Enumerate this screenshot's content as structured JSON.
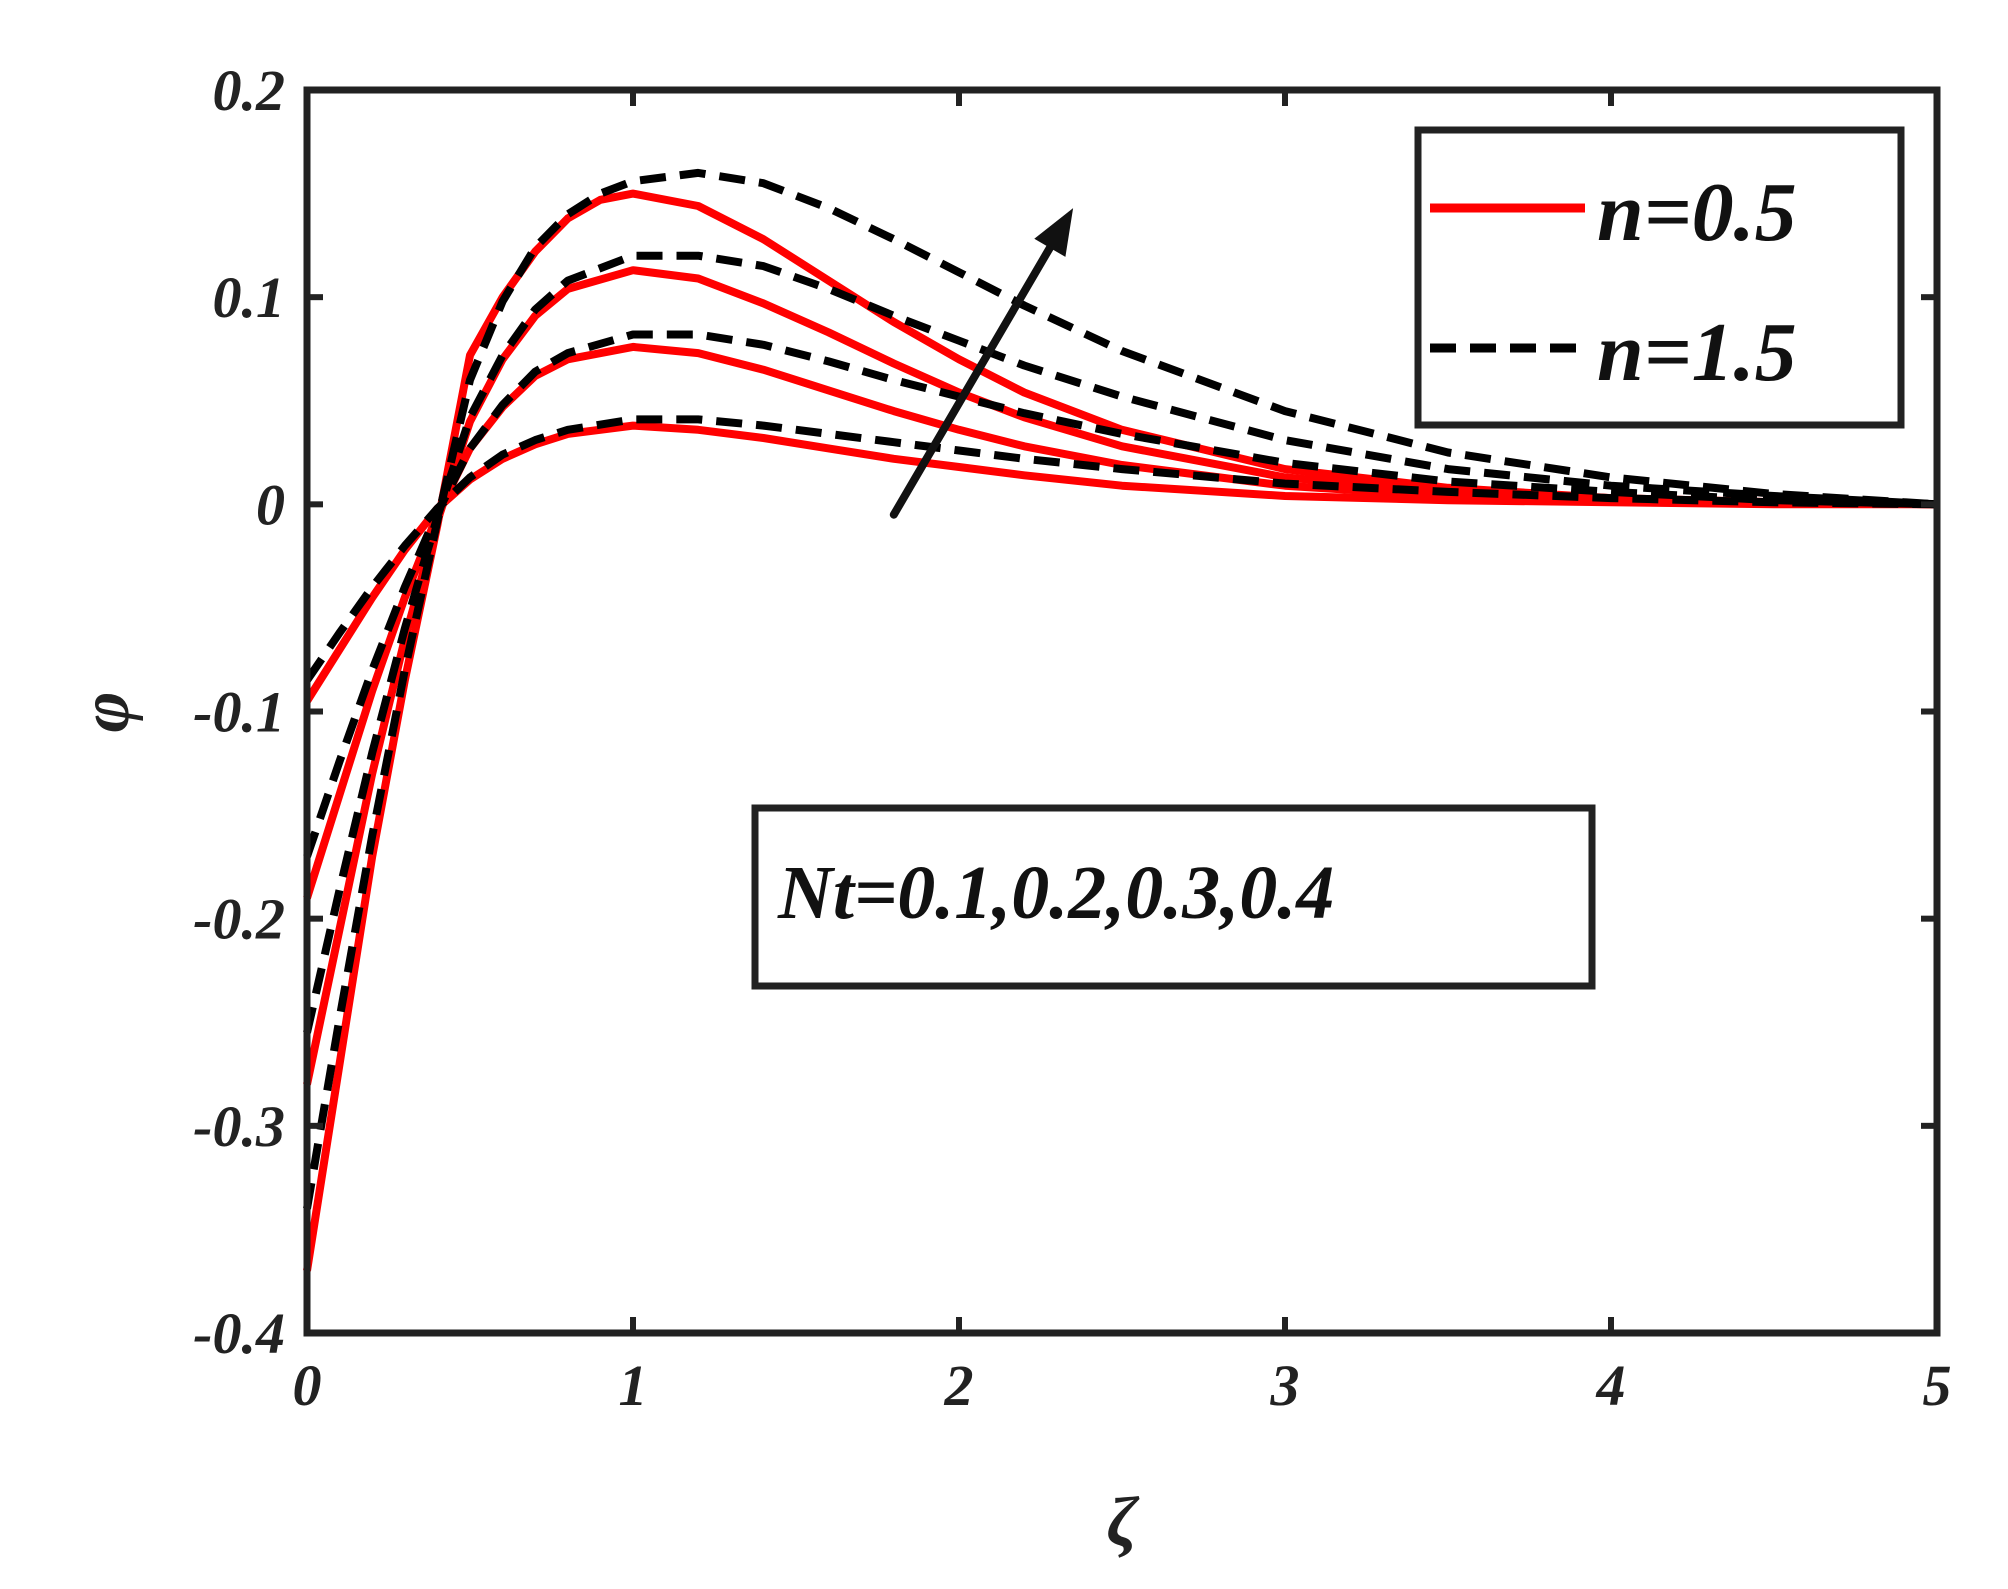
{
  "chart_data": {
    "type": "line",
    "xlabel": "ζ",
    "ylabel": "φ",
    "xlim": [
      0,
      5
    ],
    "ylim": [
      -0.4,
      0.2
    ],
    "xticks": [
      "0",
      "1",
      "2",
      "3",
      "4",
      "5"
    ],
    "yticks": [
      "0.2",
      "0.1",
      "0",
      "-0.1",
      "-0.2",
      "-0.3",
      "-0.4"
    ],
    "grid": false,
    "legend_position": "top-right",
    "legend": [
      {
        "label": "n=0.5",
        "color": "#ff0000",
        "style": "solid"
      },
      {
        "label": "n=1.5",
        "color": "#000000",
        "style": "dashed"
      }
    ],
    "annotation": "Nt=0.1,0.2,0.3,0.4",
    "arrow": {
      "direction": "increasing Nt",
      "from": [
        1.8,
        -0.005
      ],
      "to": [
        2.35,
        0.143
      ]
    },
    "series": [
      {
        "group": "n=0.5",
        "x": [
          0,
          0.1,
          0.2,
          0.3,
          0.4,
          0.5,
          0.6,
          0.7,
          0.8,
          1.0,
          1.2,
          1.4,
          1.6,
          1.8,
          2.0,
          2.2,
          2.5,
          3.0,
          3.5,
          4.0,
          4.5,
          5.0
        ],
        "y": [
          -0.095,
          -0.07,
          -0.045,
          -0.022,
          -0.002,
          0.012,
          0.022,
          0.029,
          0.034,
          0.038,
          0.036,
          0.032,
          0.027,
          0.022,
          0.018,
          0.014,
          0.009,
          0.004,
          0.002,
          0.001,
          0.0,
          0.0
        ]
      },
      {
        "group": "n=0.5",
        "x": [
          0,
          0.1,
          0.2,
          0.3,
          0.4,
          0.5,
          0.6,
          0.7,
          0.8,
          1.0,
          1.2,
          1.4,
          1.6,
          1.8,
          2.0,
          2.2,
          2.5,
          3.0,
          3.5,
          4.0,
          4.5,
          5.0
        ],
        "y": [
          -0.19,
          -0.14,
          -0.09,
          -0.045,
          -0.005,
          0.027,
          0.047,
          0.062,
          0.07,
          0.076,
          0.073,
          0.065,
          0.055,
          0.045,
          0.036,
          0.028,
          0.019,
          0.009,
          0.004,
          0.002,
          0.001,
          0.0
        ]
      },
      {
        "group": "n=0.5",
        "x": [
          0,
          0.1,
          0.2,
          0.3,
          0.4,
          0.5,
          0.6,
          0.7,
          0.8,
          1.0,
          1.2,
          1.4,
          1.6,
          1.8,
          2.0,
          2.2,
          2.5,
          3.0,
          3.5,
          4.0,
          4.5,
          5.0
        ],
        "y": [
          -0.28,
          -0.205,
          -0.13,
          -0.065,
          -0.008,
          0.04,
          0.07,
          0.091,
          0.104,
          0.113,
          0.109,
          0.097,
          0.083,
          0.068,
          0.054,
          0.042,
          0.028,
          0.013,
          0.006,
          0.003,
          0.001,
          0.0
        ]
      },
      {
        "group": "n=0.5",
        "x": [
          0,
          0.1,
          0.2,
          0.3,
          0.4,
          0.5,
          0.6,
          0.7,
          0.8,
          0.9,
          1.0,
          1.2,
          1.4,
          1.6,
          1.8,
          2.0,
          2.2,
          2.5,
          3.0,
          3.5,
          4.0,
          4.5,
          5.0
        ],
        "y": [
          -0.37,
          -0.27,
          -0.17,
          -0.085,
          -0.01,
          0.072,
          0.1,
          0.122,
          0.138,
          0.147,
          0.15,
          0.144,
          0.128,
          0.108,
          0.088,
          0.07,
          0.054,
          0.036,
          0.017,
          0.008,
          0.003,
          0.001,
          0.0
        ]
      },
      {
        "group": "n=1.5",
        "x": [
          0,
          0.1,
          0.2,
          0.3,
          0.4,
          0.5,
          0.6,
          0.7,
          0.8,
          1.0,
          1.2,
          1.4,
          1.6,
          1.8,
          2.0,
          2.2,
          2.5,
          3.0,
          3.5,
          4.0,
          4.5,
          5.0
        ],
        "y": [
          -0.085,
          -0.062,
          -0.04,
          -0.02,
          -0.002,
          0.013,
          0.024,
          0.031,
          0.036,
          0.041,
          0.041,
          0.038,
          0.034,
          0.03,
          0.026,
          0.022,
          0.017,
          0.01,
          0.006,
          0.003,
          0.001,
          0.0
        ]
      },
      {
        "group": "n=1.5",
        "x": [
          0,
          0.1,
          0.2,
          0.3,
          0.4,
          0.5,
          0.6,
          0.7,
          0.8,
          1.0,
          1.2,
          1.4,
          1.6,
          1.8,
          2.0,
          2.2,
          2.5,
          3.0,
          3.5,
          4.0,
          4.5,
          5.0
        ],
        "y": [
          -0.17,
          -0.124,
          -0.08,
          -0.04,
          -0.004,
          0.027,
          0.048,
          0.064,
          0.073,
          0.082,
          0.082,
          0.077,
          0.069,
          0.06,
          0.052,
          0.044,
          0.034,
          0.02,
          0.011,
          0.006,
          0.002,
          0.0
        ]
      },
      {
        "group": "n=1.5",
        "x": [
          0,
          0.1,
          0.2,
          0.3,
          0.4,
          0.5,
          0.6,
          0.7,
          0.8,
          1.0,
          1.2,
          1.4,
          1.6,
          1.8,
          2.0,
          2.2,
          2.5,
          3.0,
          3.5,
          4.0,
          4.5,
          5.0
        ],
        "y": [
          -0.255,
          -0.186,
          -0.12,
          -0.06,
          -0.006,
          0.042,
          0.072,
          0.094,
          0.108,
          0.12,
          0.12,
          0.115,
          0.104,
          0.091,
          0.079,
          0.067,
          0.052,
          0.031,
          0.017,
          0.009,
          0.004,
          0.0
        ]
      },
      {
        "group": "n=1.5",
        "x": [
          0,
          0.1,
          0.2,
          0.3,
          0.4,
          0.5,
          0.6,
          0.7,
          0.8,
          0.9,
          1.0,
          1.2,
          1.4,
          1.6,
          1.8,
          2.0,
          2.2,
          2.5,
          3.0,
          3.5,
          4.0,
          4.5,
          5.0
        ],
        "y": [
          -0.34,
          -0.248,
          -0.16,
          -0.08,
          -0.008,
          0.06,
          0.098,
          0.124,
          0.14,
          0.15,
          0.156,
          0.16,
          0.155,
          0.143,
          0.128,
          0.112,
          0.096,
          0.074,
          0.045,
          0.025,
          0.013,
          0.005,
          0.0
        ]
      }
    ]
  }
}
